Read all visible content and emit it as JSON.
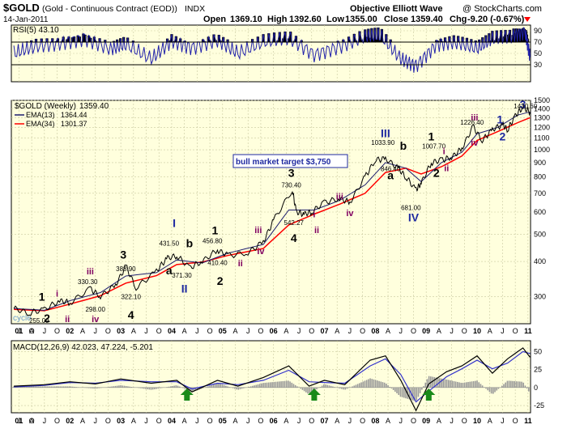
{
  "header": {
    "symbol": "$GOLD",
    "description": "(Gold - Continuous Contract (EOD))",
    "exchange": "INDX",
    "brand": "Objective Elliott Wave",
    "credit": "@ StockCharts.com",
    "date": "14-Jan-2011",
    "open_label": "Open",
    "open": "1369.10",
    "high_label": "High",
    "high": "1392.60",
    "low_label": "Low",
    "low": "1355.00",
    "close_label": "Close",
    "close": "1359.40",
    "chg_label": "Chg",
    "chg": "-9.20 (-0.67%)"
  },
  "colors": {
    "background": "#ffffff",
    "panel": "#ffffdd",
    "grid": "#c9c9a0",
    "price": "#000000",
    "ema_fast": "#1c1c6e",
    "ema_slow": "#ff0000",
    "rsi_line": "#2222aa",
    "rsi_fill": "#000000",
    "macd_line": "#000000",
    "macd_signal": "#3333cc",
    "macd_hist": "#999999",
    "wave_black": "#000000",
    "wave_blue": "#1f2aa0",
    "wave_purple": "#800060",
    "arrow": "#1a8a1a",
    "title_blue": "#0000cc",
    "down_red": "#ff0000"
  },
  "chart_data": [
    {
      "type": "line",
      "panel": "rsi",
      "title": "RSI(5) 43.10",
      "indicator": "RSI(5)",
      "last_value": "43.10",
      "y_ticks": [
        "90",
        "70",
        "50",
        "30"
      ],
      "ylim": [
        0,
        100
      ],
      "overbought": 70,
      "oversold": 30,
      "x_range": [
        2000.85,
        2011.05
      ],
      "series": [
        {
          "name": "RSI(5)",
          "x": [
            2000.9,
            2001.3,
            2001.8,
            2002.3,
            2002.8,
            2003.1,
            2003.6,
            2004.0,
            2004.4,
            2004.9,
            2005.3,
            2005.8,
            2006.3,
            2006.8,
            2007.3,
            2007.8,
            2008.1,
            2008.5,
            2008.8,
            2009.2,
            2009.6,
            2010.0,
            2010.3,
            2010.7,
            2010.95,
            2011.04
          ],
          "values": [
            50,
            62,
            68,
            76,
            58,
            66,
            40,
            72,
            60,
            74,
            50,
            70,
            78,
            48,
            62,
            80,
            82,
            40,
            28,
            66,
            70,
            58,
            76,
            82,
            88,
            43.1
          ]
        }
      ]
    },
    {
      "type": "line",
      "panel": "price",
      "title": "$GOLD (Weekly) 1359.40",
      "legend": [
        {
          "name": "$GOLD (Weekly)",
          "value": "1359.40"
        },
        {
          "name": "EMA(13)",
          "value": "1364.44"
        },
        {
          "name": "EMA(34)",
          "value": "1301.37"
        }
      ],
      "xlabel": "",
      "ylabel": "",
      "ylim": [
        240,
        1500
      ],
      "y_ticks": [
        "1500",
        "1400",
        "1300",
        "1200",
        "1100",
        "1000",
        "900",
        "800",
        "700",
        "600",
        "500",
        "400",
        "300"
      ],
      "x_range": [
        2000.85,
        2011.05
      ],
      "series": [
        {
          "name": "$GOLD (Weekly)",
          "x": [
            2000.9,
            2001.2,
            2001.5,
            2001.8,
            2002.0,
            2002.4,
            2002.6,
            2002.9,
            2003.1,
            2003.3,
            2003.7,
            2003.9,
            2004.1,
            2004.35,
            2004.6,
            2004.9,
            2005.1,
            2005.5,
            2005.8,
            2006.0,
            2006.37,
            2006.45,
            2006.6,
            2006.75,
            2007.0,
            2007.3,
            2007.5,
            2007.8,
            2008.0,
            2008.2,
            2008.45,
            2008.6,
            2008.8,
            2008.9,
            2009.1,
            2009.3,
            2009.5,
            2009.7,
            2009.92,
            2010.1,
            2010.3,
            2010.5,
            2010.6,
            2010.75,
            2010.9,
            2011.04
          ],
          "values": [
            272,
            262,
            270,
            290,
            285,
            320,
            300,
            330,
            385,
            322,
            370,
            410,
            420,
            380,
            400,
            440,
            420,
            430,
            470,
            560,
            720,
            600,
            590,
            600,
            650,
            670,
            650,
            800,
            920,
            930,
            860,
            800,
            720,
            760,
            900,
            920,
            940,
            1010,
            1210,
            1080,
            1180,
            1230,
            1180,
            1320,
            1420,
            1359.4
          ]
        },
        {
          "name": "EMA(13)",
          "x": [
            2000.9,
            2001.5,
            2002.0,
            2002.6,
            2003.1,
            2003.7,
            2004.1,
            2004.6,
            2005.1,
            2005.8,
            2006.3,
            2006.8,
            2007.3,
            2007.8,
            2008.2,
            2008.6,
            2008.9,
            2009.3,
            2009.7,
            2010.0,
            2010.4,
            2010.8,
            2011.04
          ],
          "values": [
            272,
            268,
            290,
            310,
            355,
            365,
            405,
            395,
            428,
            460,
            610,
            610,
            660,
            750,
            900,
            860,
            770,
            900,
            980,
            1140,
            1200,
            1330,
            1364.44
          ]
        },
        {
          "name": "EMA(34)",
          "x": [
            2000.9,
            2001.5,
            2002.0,
            2002.6,
            2003.1,
            2003.7,
            2004.1,
            2004.6,
            2005.1,
            2005.8,
            2006.3,
            2006.8,
            2007.3,
            2007.8,
            2008.2,
            2008.6,
            2008.9,
            2009.3,
            2009.7,
            2010.0,
            2010.4,
            2010.8,
            2011.04
          ],
          "values": [
            270,
            267,
            282,
            302,
            335,
            356,
            390,
            398,
            420,
            445,
            540,
            590,
            640,
            700,
            830,
            860,
            820,
            870,
            950,
            1080,
            1160,
            1250,
            1301.37
          ]
        }
      ],
      "annotations": [
        {
          "text": "1",
          "x": 2001.45,
          "y": 290,
          "color": "black",
          "size": "big"
        },
        {
          "text": "2",
          "x": 2001.55,
          "y": 233,
          "color": "black",
          "size": "big"
        },
        {
          "text": "i",
          "x": 2001.75,
          "y": 300,
          "color": "purple",
          "size": "mid"
        },
        {
          "text": "ii",
          "x": 2001.95,
          "y": 240,
          "color": "purple",
          "size": "mid"
        },
        {
          "text": "iii",
          "x": 2002.4,
          "y": 360,
          "color": "purple",
          "size": "mid"
        },
        {
          "text": "330.30",
          "x": 2002.35,
          "y": 332,
          "color": "black",
          "size": "small"
        },
        {
          "text": "298.00",
          "x": 2002.5,
          "y": 265,
          "color": "black",
          "size": "small"
        },
        {
          "text": "iv",
          "x": 2002.5,
          "y": 232,
          "color": "purple",
          "size": "mid"
        },
        {
          "text": "3",
          "x": 2003.05,
          "y": 410,
          "color": "black",
          "size": "big"
        },
        {
          "text": "388.90",
          "x": 2003.1,
          "y": 370,
          "color": "black",
          "size": "small"
        },
        {
          "text": "322.10",
          "x": 2003.2,
          "y": 294,
          "color": "black",
          "size": "small"
        },
        {
          "text": "4",
          "x": 2003.2,
          "y": 250,
          "color": "black",
          "size": "big"
        },
        {
          "text": "I",
          "x": 2004.05,
          "y": 530,
          "color": "blue",
          "size": "big"
        },
        {
          "text": "431.50",
          "x": 2003.95,
          "y": 455,
          "color": "black",
          "size": "small"
        },
        {
          "text": "b",
          "x": 2004.35,
          "y": 450,
          "color": "black",
          "size": "big"
        },
        {
          "text": "a",
          "x": 2003.95,
          "y": 360,
          "color": "black",
          "size": "big"
        },
        {
          "text": "371.30",
          "x": 2004.2,
          "y": 350,
          "color": "black",
          "size": "small"
        },
        {
          "text": "II",
          "x": 2004.25,
          "y": 310,
          "color": "blue",
          "size": "big"
        },
        {
          "text": "1",
          "x": 2004.85,
          "y": 500,
          "color": "black",
          "size": "big"
        },
        {
          "text": "456.80",
          "x": 2004.8,
          "y": 465,
          "color": "black",
          "size": "small"
        },
        {
          "text": "410.40",
          "x": 2004.9,
          "y": 388,
          "color": "black",
          "size": "small"
        },
        {
          "text": "2",
          "x": 2004.95,
          "y": 330,
          "color": "black",
          "size": "big"
        },
        {
          "text": "ii",
          "x": 2005.35,
          "y": 385,
          "color": "purple",
          "size": "mid"
        },
        {
          "text": "iii",
          "x": 2005.7,
          "y": 505,
          "color": "purple",
          "size": "mid"
        },
        {
          "text": "iv",
          "x": 2005.75,
          "y": 425,
          "color": "purple",
          "size": "mid"
        },
        {
          "text": "3",
          "x": 2006.35,
          "y": 800,
          "color": "black",
          "size": "big"
        },
        {
          "text": "730.40",
          "x": 2006.35,
          "y": 735,
          "color": "black",
          "size": "small"
        },
        {
          "text": "542.27",
          "x": 2006.4,
          "y": 540,
          "color": "black",
          "size": "small"
        },
        {
          "text": "i",
          "x": 2006.8,
          "y": 575,
          "color": "purple",
          "size": "mid"
        },
        {
          "text": "ii",
          "x": 2006.85,
          "y": 505,
          "color": "purple",
          "size": "mid"
        },
        {
          "text": "4",
          "x": 2006.4,
          "y": 470,
          "color": "black",
          "size": "big"
        },
        {
          "text": "iii",
          "x": 2007.3,
          "y": 665,
          "color": "purple",
          "size": "mid"
        },
        {
          "text": "iv",
          "x": 2007.5,
          "y": 580,
          "color": "purple",
          "size": "mid"
        },
        {
          "text": "III",
          "x": 2008.2,
          "y": 1110,
          "color": "blue",
          "size": "big"
        },
        {
          "text": "1033.90",
          "x": 2008.15,
          "y": 1040,
          "color": "black",
          "size": "small"
        },
        {
          "text": "b",
          "x": 2008.55,
          "y": 1000,
          "color": "black",
          "size": "big"
        },
        {
          "text": "846.40",
          "x": 2008.3,
          "y": 840,
          "color": "black",
          "size": "small"
        },
        {
          "text": "a",
          "x": 2008.3,
          "y": 785,
          "color": "black",
          "size": "big"
        },
        {
          "text": "681.00",
          "x": 2008.7,
          "y": 610,
          "color": "black",
          "size": "small"
        },
        {
          "text": "IV",
          "x": 2008.75,
          "y": 555,
          "color": "blue",
          "size": "big"
        },
        {
          "text": "1",
          "x": 2009.1,
          "y": 1080,
          "color": "black",
          "size": "big"
        },
        {
          "text": "1007.70",
          "x": 2009.15,
          "y": 1010,
          "color": "black",
          "size": "small"
        },
        {
          "text": "i",
          "x": 2009.35,
          "y": 965,
          "color": "purple",
          "size": "mid"
        },
        {
          "text": "2",
          "x": 2009.2,
          "y": 800,
          "color": "black",
          "size": "big"
        },
        {
          "text": "ii",
          "x": 2009.4,
          "y": 840,
          "color": "purple",
          "size": "mid"
        },
        {
          "text": "iii",
          "x": 2009.95,
          "y": 1270,
          "color": "purple",
          "size": "mid"
        },
        {
          "text": "1226.40",
          "x": 2009.9,
          "y": 1230,
          "color": "black",
          "size": "small"
        },
        {
          "text": "iv",
          "x": 2009.95,
          "y": 1035,
          "color": "purple",
          "size": "mid"
        },
        {
          "text": "1",
          "x": 2010.45,
          "y": 1240,
          "color": "blue",
          "size": "big"
        },
        {
          "text": "2",
          "x": 2010.5,
          "y": 1080,
          "color": "blue",
          "size": "big"
        },
        {
          "text": "3",
          "x": 2010.9,
          "y": 1530,
          "color": "blue",
          "size": "big"
        },
        {
          "text": "1430.60",
          "x": 2010.95,
          "y": 1465,
          "color": "black",
          "size": "small"
        }
      ],
      "target_label": "bull market target $3,750",
      "cycle_label": "cycle",
      "low_label": "255.00"
    },
    {
      "type": "line",
      "panel": "macd",
      "title": "MACD(12,26,9) 42.023, 47.224, -5.201",
      "indicator": "MACD(12,26,9)",
      "values_text": [
        "42.023,",
        "47.224,",
        "-5.201"
      ],
      "y_ticks": [
        "50",
        "25",
        "0",
        "-25"
      ],
      "ylim": [
        -35,
        65
      ],
      "x_range": [
        2000.85,
        2011.05
      ],
      "series": [
        {
          "name": "MACD",
          "x": [
            2000.9,
            2001.5,
            2002.0,
            2002.5,
            2003.0,
            2003.6,
            2004.1,
            2004.4,
            2004.9,
            2005.3,
            2005.8,
            2006.3,
            2006.7,
            2007.0,
            2007.4,
            2007.9,
            2008.2,
            2008.5,
            2008.8,
            2009.05,
            2009.4,
            2009.7,
            2010.0,
            2010.3,
            2010.6,
            2010.9,
            2011.04
          ],
          "values": [
            2,
            4,
            8,
            5,
            12,
            6,
            10,
            -6,
            10,
            2,
            14,
            30,
            2,
            10,
            4,
            38,
            44,
            10,
            -32,
            5,
            22,
            30,
            44,
            20,
            40,
            55,
            42.023
          ]
        },
        {
          "name": "Signal",
          "x": [
            2000.9,
            2001.5,
            2002.0,
            2002.5,
            2003.0,
            2003.6,
            2004.1,
            2004.4,
            2004.9,
            2005.3,
            2005.8,
            2006.3,
            2006.7,
            2007.0,
            2007.4,
            2007.9,
            2008.2,
            2008.5,
            2008.8,
            2009.05,
            2009.4,
            2009.7,
            2010.0,
            2010.3,
            2010.6,
            2010.9,
            2011.04
          ],
          "values": [
            1,
            3,
            7,
            6,
            10,
            8,
            8,
            -2,
            6,
            4,
            10,
            24,
            8,
            7,
            6,
            30,
            40,
            18,
            -20,
            -5,
            15,
            26,
            38,
            26,
            34,
            50,
            47.224
          ]
        }
      ],
      "buy_arrows_x": [
        2004.3,
        2006.8,
        2009.05
      ],
      "histogram_last": "-5.201"
    }
  ],
  "x_axis_labels": [
    {
      "text": "J",
      "x": 2001.0
    },
    {
      "text": "O",
      "x": 2001.25
    },
    {
      "text": "01",
      "x": 2001.0
    },
    {
      "text": "A",
      "x": 2001.25
    },
    {
      "text": "J",
      "x": 2001.5
    },
    {
      "text": "O",
      "x": 2001.75
    },
    {
      "text": "02",
      "x": 2002.0
    },
    {
      "text": "A",
      "x": 2002.25
    },
    {
      "text": "J",
      "x": 2002.5
    },
    {
      "text": "O",
      "x": 2002.75
    },
    {
      "text": "03",
      "x": 2003.0
    },
    {
      "text": "A",
      "x": 2003.25
    },
    {
      "text": "J",
      "x": 2003.5
    },
    {
      "text": "O",
      "x": 2003.75
    },
    {
      "text": "04",
      "x": 2004.0
    },
    {
      "text": "A",
      "x": 2004.25
    },
    {
      "text": "J",
      "x": 2004.5
    },
    {
      "text": "O",
      "x": 2004.75
    },
    {
      "text": "05",
      "x": 2005.0
    },
    {
      "text": "A",
      "x": 2005.25
    },
    {
      "text": "J",
      "x": 2005.5
    },
    {
      "text": "O",
      "x": 2005.75
    },
    {
      "text": "06",
      "x": 2006.0
    },
    {
      "text": "A",
      "x": 2006.25
    },
    {
      "text": "J",
      "x": 2006.5
    },
    {
      "text": "O",
      "x": 2006.75
    },
    {
      "text": "07",
      "x": 2007.0
    },
    {
      "text": "A",
      "x": 2007.25
    },
    {
      "text": "J",
      "x": 2007.5
    },
    {
      "text": "O",
      "x": 2007.75
    },
    {
      "text": "08",
      "x": 2008.0
    },
    {
      "text": "A",
      "x": 2008.25
    },
    {
      "text": "J",
      "x": 2008.5
    },
    {
      "text": "O",
      "x": 2008.75
    },
    {
      "text": "09",
      "x": 2009.0
    },
    {
      "text": "A",
      "x": 2009.25
    },
    {
      "text": "J",
      "x": 2009.5
    },
    {
      "text": "O",
      "x": 2009.75
    },
    {
      "text": "10",
      "x": 2010.0
    },
    {
      "text": "A",
      "x": 2010.25
    },
    {
      "text": "J",
      "x": 2010.5
    },
    {
      "text": "O",
      "x": 2010.75
    },
    {
      "text": "11",
      "x": 2011.0
    }
  ]
}
